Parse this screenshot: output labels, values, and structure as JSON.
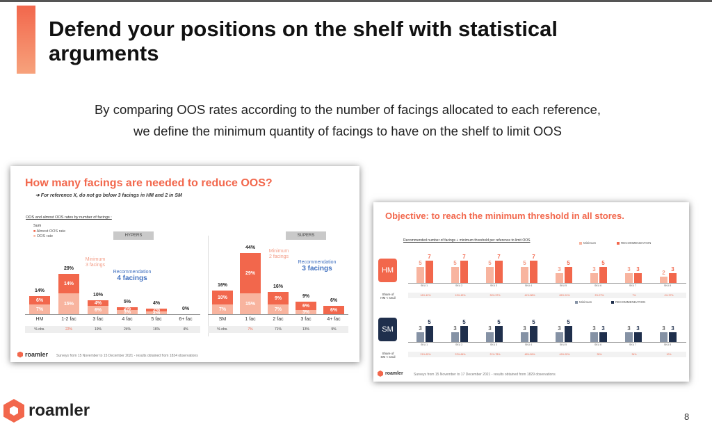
{
  "slide": {
    "title": "Defend your positions on the shelf with statistical arguments",
    "subtitle_line1": "By comparing OOS rates according to the number of facings allocated to each reference,",
    "subtitle_line2": "we define the minimum quantity of facings to have on the shelf to limit OOS",
    "brand": "roamler",
    "page_number": "8",
    "accent_color": "#f2674c"
  },
  "card1": {
    "title": "How many facings are needed to reduce OOS?",
    "note": "➔ For reference X, do not go below 3 facings in HM and 2 in SM",
    "chart_caption": "OOS and almost OOS rates by number of facings :",
    "legend_title": "Sum",
    "legend_dark": "Almost OOS rate",
    "legend_light": "OOS rate",
    "hypers_label": "HYPERS",
    "supers_label": "SUPERS",
    "hyp_min_ann": "Minimum\n3 facings",
    "hyp_rec_ann_small": "Recommendation",
    "hyp_rec_ann_big": "4 facings",
    "sup_min_ann": "Minimum\n2 facings",
    "sup_rec_ann_small": "Recommendation",
    "sup_rec_ann_big": "3 facings",
    "footer": "Surveys from 15 November to 15 December 2021 - results obtained from 1834 observations",
    "brand": "roamler"
  },
  "chart_data": [
    {
      "type": "bar",
      "title": "How many facings are needed to reduce OOS?",
      "subtitle": "OOS and almost OOS rates by number of facings :",
      "legend": [
        "Almost OOS rate",
        "OOS rate"
      ],
      "groups": [
        {
          "name": "HYPERS",
          "categories": [
            "HM",
            "1-2 fac",
            "3 fac",
            "4 fac",
            "5 fac",
            "6+ fac"
          ],
          "series": [
            {
              "name": "OOS rate",
              "values": [
                7,
                15,
                6,
                3,
                2,
                0
              ]
            },
            {
              "name": "Almost OOS rate",
              "values": [
                6,
                14,
                4,
                2,
                2,
                0
              ]
            }
          ],
          "total_labels": [
            "14%",
            "29%",
            "10%",
            "5%",
            "4%",
            "0%"
          ],
          "dark_labels": [
            "6%",
            "14%",
            "4%",
            "2%",
            "2%",
            ""
          ],
          "light_labels": [
            "7%",
            "15%",
            "6%",
            "3%",
            "2%",
            ""
          ],
          "share_labels": [
            "% obs.",
            "22%",
            "19%",
            "24%",
            "16%",
            "4%"
          ],
          "share_colors": [
            "#444",
            "#f2674c",
            "#444",
            "#444",
            "#444",
            "#444"
          ]
        },
        {
          "name": "SUPERS",
          "categories": [
            "SM",
            "1 fac",
            "2 fac",
            "3 fac",
            "4+ fac"
          ],
          "series": [
            {
              "name": "OOS rate",
              "values": [
                7,
                15,
                7,
                3,
                0
              ]
            },
            {
              "name": "Almost OOS rate",
              "values": [
                10,
                29,
                9,
                6,
                6
              ]
            }
          ],
          "total_labels": [
            "16%",
            "44%",
            "16%",
            "9%",
            "6%"
          ],
          "dark_labels": [
            "10%",
            "29%",
            "9%",
            "6%",
            "6%"
          ],
          "light_labels": [
            "7%",
            "15%",
            "7%",
            "3%",
            ""
          ],
          "share_labels": [
            "% obs.",
            "7%",
            "71%",
            "13%",
            "9%"
          ],
          "share_colors": [
            "#444",
            "#f2674c",
            "#444",
            "#444",
            "#444"
          ]
        }
      ]
    },
    {
      "type": "bar",
      "title": "Objective: to reach the minimum threshold in all stores.",
      "subtitle": "Recommended number of facings + minimum threshold per reference to limit OOS",
      "categories": [
        "SKU 1",
        "SKU 2",
        "SKU 3",
        "SKU 4",
        "SKU 5",
        "SKU 6",
        "SKU 7",
        "SKU 8"
      ],
      "rows": [
        {
          "name": "HM",
          "box_color": "#f2674c",
          "legend": [
            "Minimum",
            "RECOMMENDATION"
          ],
          "light_color": "#f8b49f",
          "dark_color": "#f2674c",
          "series": [
            {
              "name": "Minimum",
              "values": [
                5,
                5,
                5,
                5,
                3,
                3,
                3,
                2
              ]
            },
            {
              "name": "RECOMMENDATION",
              "values": [
                7,
                7,
                7,
                7,
                5,
                5,
                3,
                3
              ]
            }
          ],
          "share_label": "Share of\nHM < seuil",
          "shares": [
            [
              "16%",
              "42%"
            ],
            [
              "19%",
              "43%"
            ],
            [
              "30%",
              "57%"
            ],
            [
              "41%",
              "88%"
            ],
            [
              "65%",
              "91%"
            ],
            [
              "2%",
              "27%"
            ],
            [
              "7%",
              ""
            ],
            [
              "4%",
              "37%"
            ]
          ]
        },
        {
          "name": "SM",
          "box_color": "#1f2f4c",
          "legend": [
            "Minimum",
            "RECOMMENDATION"
          ],
          "light_color": "#8592a5",
          "dark_color": "#1f2f4c",
          "series": [
            {
              "name": "Minimum",
              "values": [
                3,
                3,
                3,
                3,
                3,
                3,
                3,
                3
              ]
            },
            {
              "name": "RECOMMENDATION",
              "values": [
                5,
                5,
                5,
                5,
                5,
                3,
                3,
                3
              ]
            }
          ],
          "share_label": "Share of\nSM < seuil",
          "shares": [
            [
              "21%",
              "62%"
            ],
            [
              "22%",
              "66%"
            ],
            [
              "21%",
              "78%"
            ],
            [
              "48%",
              "89%"
            ],
            [
              "49%",
              "92%"
            ],
            [
              "28%",
              ""
            ],
            [
              "34%",
              ""
            ],
            [
              "10%",
              ""
            ]
          ]
        }
      ]
    }
  ],
  "card2": {
    "title": "Objective: to reach the minimum threshold in all stores.",
    "caption": "Recommended number of facings + minimum threshold per reference to limit OOS",
    "footer": "Surveys from 15 November to 17 December 2021 - results obtained from 1829 observations",
    "brand": "roamler"
  }
}
